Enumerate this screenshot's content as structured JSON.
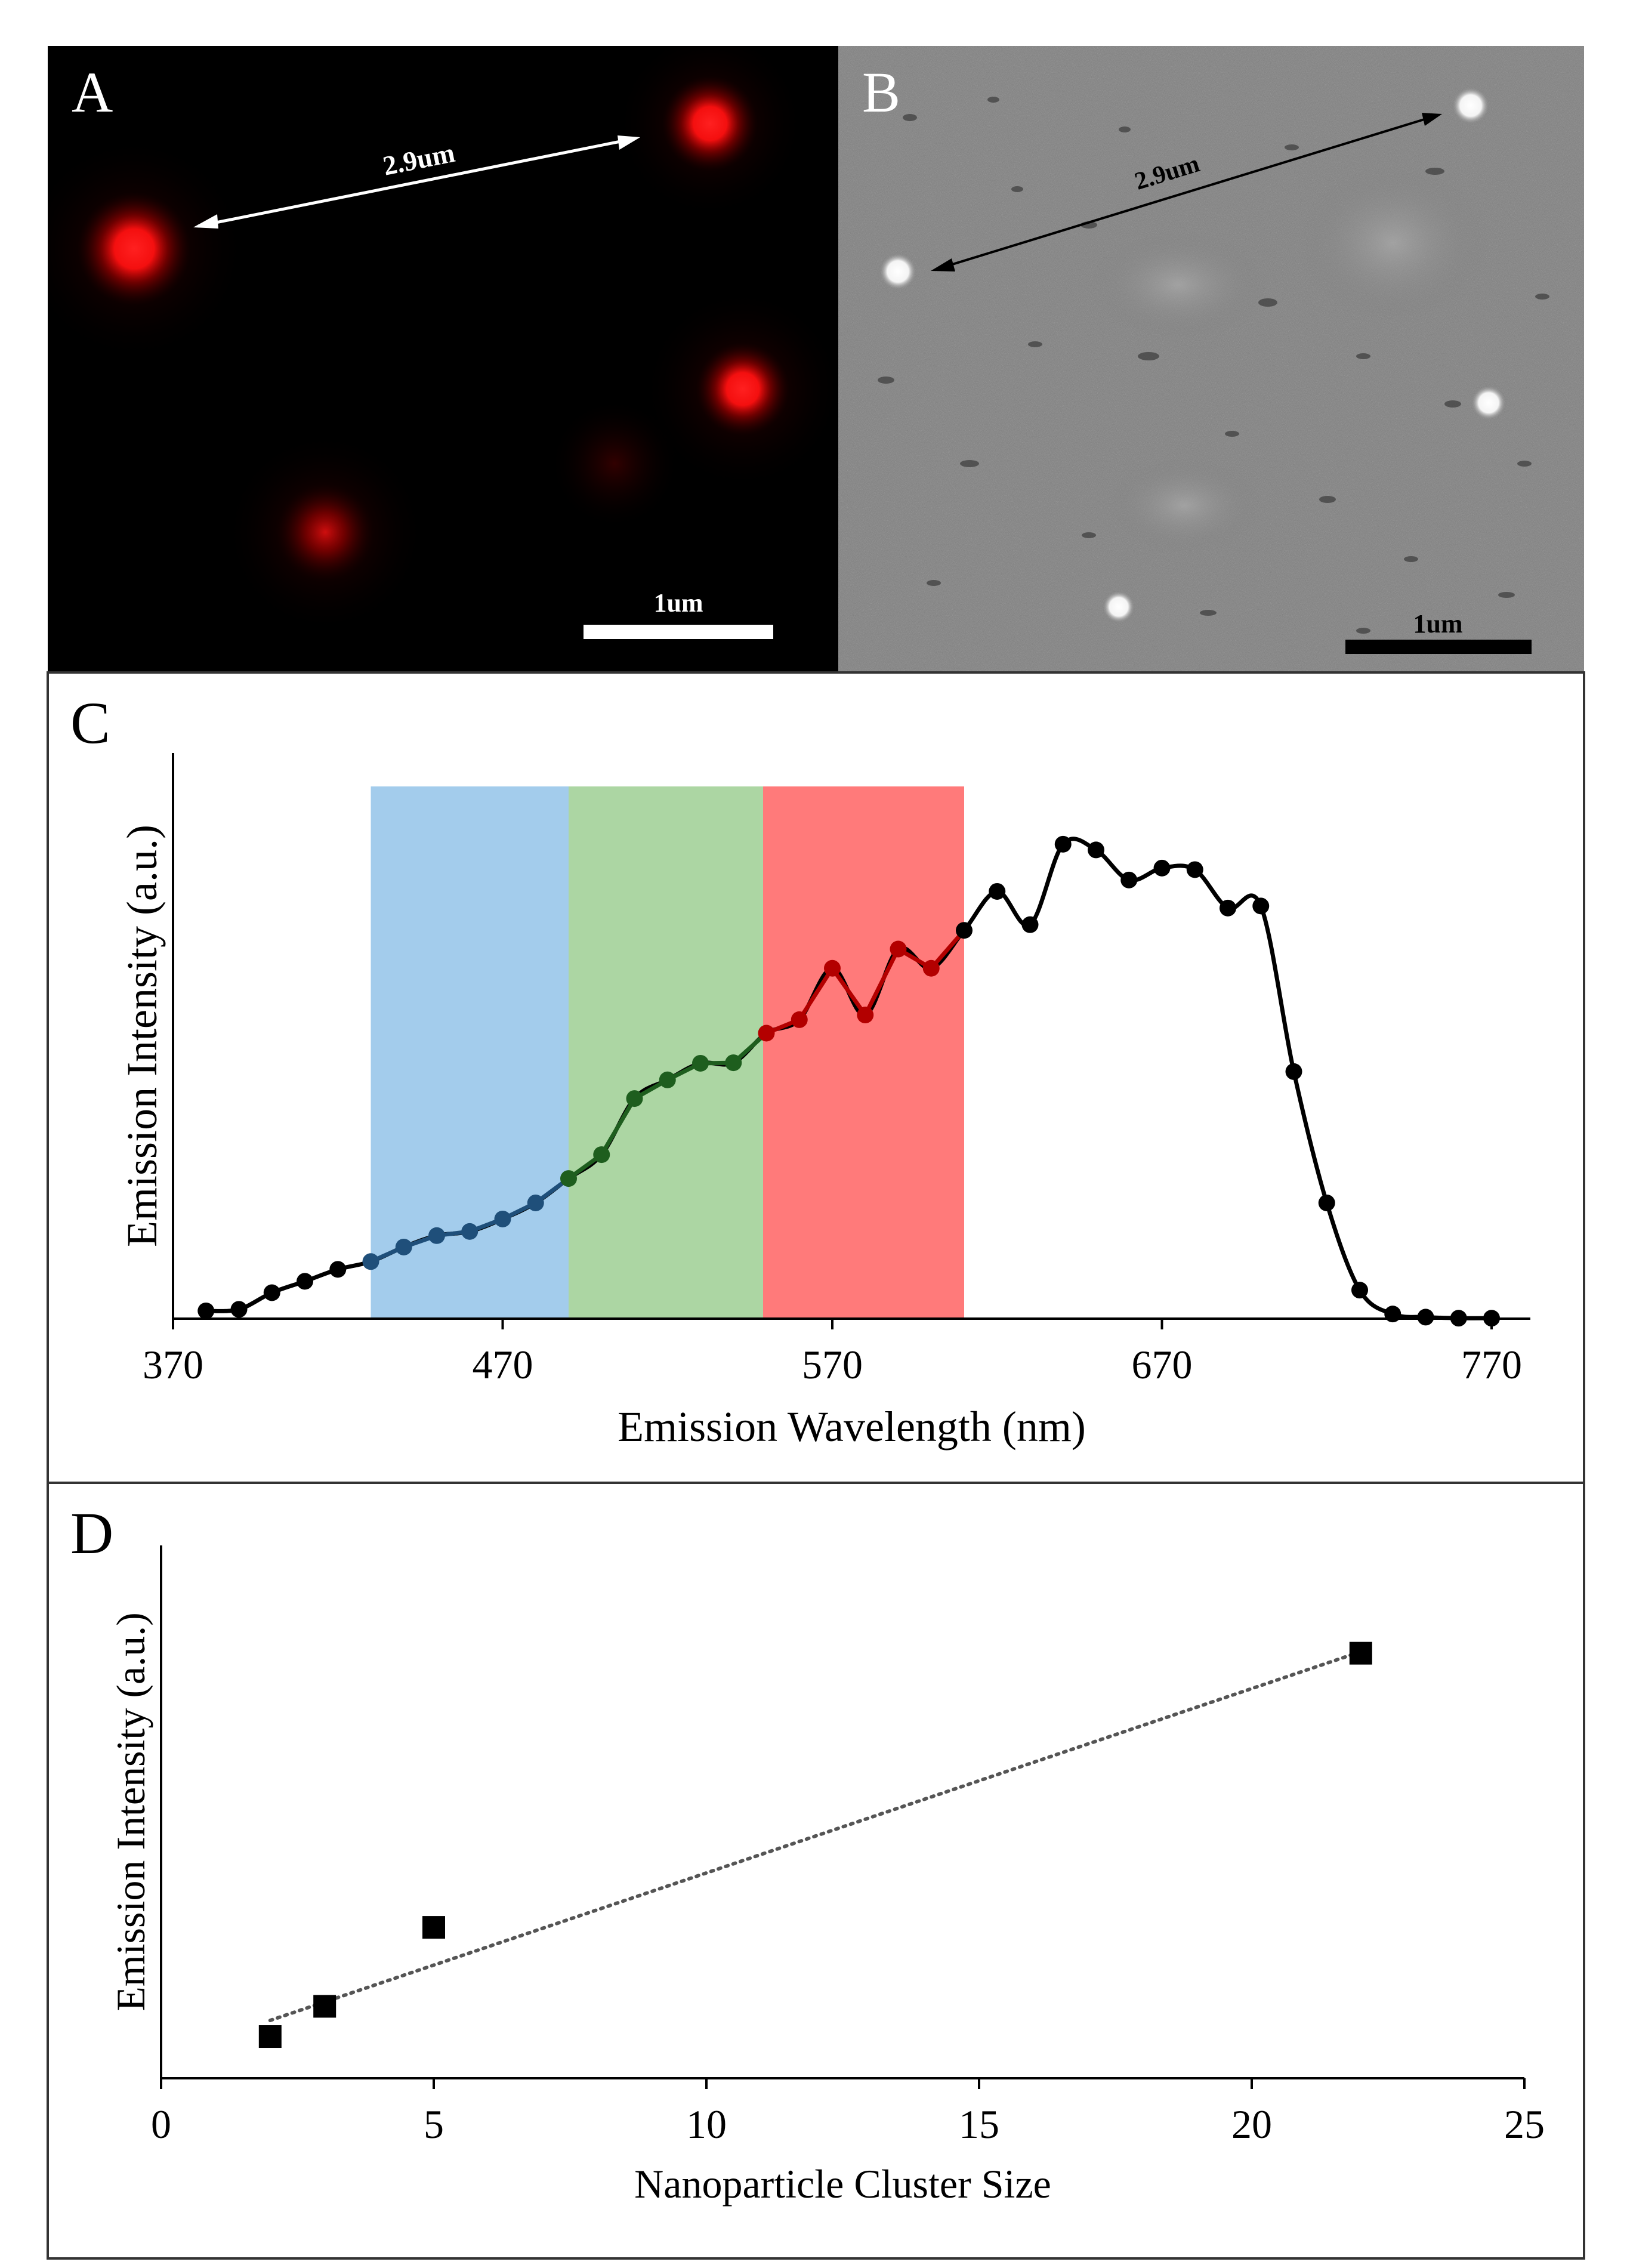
{
  "panels": {
    "a": {
      "letter": "A",
      "distance_label": "2.9um",
      "scale_label": "1um",
      "marker_color": "#ff1a1a",
      "arrow_color": "#ffffff"
    },
    "b": {
      "letter": "B",
      "distance_label": "2.9um",
      "scale_label": "1um",
      "arrow_color": "#000000"
    },
    "c": {
      "letter": "C"
    },
    "d": {
      "letter": "D"
    }
  },
  "chart_data": [
    {
      "id": "emission-spectrum",
      "type": "line",
      "xlabel": "Emission Wavelength (nm)",
      "ylabel": "Emission Intensity (a.u.)",
      "xlim": [
        370,
        775
      ],
      "ylim": [
        0,
        100
      ],
      "xticks": [
        370,
        470,
        570,
        670,
        770
      ],
      "y_ticks_shown": false,
      "bands": [
        {
          "name": "blue",
          "from": 430,
          "to": 490,
          "color": "#a3ccec"
        },
        {
          "name": "green",
          "from": 490,
          "to": 549,
          "color": "#acd6a3"
        },
        {
          "name": "red",
          "from": 549,
          "to": 610,
          "color": "#ff7a7a"
        }
      ],
      "series": [
        {
          "name": "emission",
          "x": [
            380,
            390,
            400,
            410,
            420,
            430,
            440,
            450,
            460,
            470,
            480,
            490,
            500,
            510,
            520,
            530,
            540,
            550,
            560,
            570,
            580,
            590,
            600,
            610,
            620,
            630,
            640,
            650,
            660,
            670,
            680,
            690,
            700,
            710,
            720,
            730,
            740,
            750,
            760,
            770
          ],
          "y": [
            1.5,
            1.8,
            5.0,
            7.2,
            9.5,
            11.0,
            13.8,
            16.0,
            16.8,
            19.2,
            22.3,
            27.0,
            31.6,
            42.4,
            46.0,
            49.2,
            49.3,
            55.0,
            57.6,
            67.5,
            58.5,
            71.2,
            67.5,
            74.8,
            82.3,
            75.9,
            91.4,
            90.3,
            84.5,
            86.8,
            86.5,
            79.1,
            79.5,
            47.6,
            22.3,
            5.5,
            0.9,
            0.3,
            0.1,
            0.1
          ]
        }
      ]
    },
    {
      "id": "cluster-size",
      "type": "scatter",
      "xlabel": "Nanoparticle Cluster Size",
      "ylabel": "Emission Intensity (a.u.)",
      "xlim": [
        0,
        25
      ],
      "ylim": [
        0,
        100
      ],
      "xticks": [
        0,
        5,
        10,
        15,
        20,
        25
      ],
      "y_ticks_shown": false,
      "series": [
        {
          "name": "measured",
          "x": [
            2,
            3,
            5,
            22
          ],
          "y": [
            8.3,
            14.3,
            30.0,
            84.5
          ]
        }
      ],
      "trendline": {
        "style": "dotted",
        "x": [
          2,
          22
        ],
        "y": [
          11.5,
          84.8
        ]
      }
    }
  ]
}
